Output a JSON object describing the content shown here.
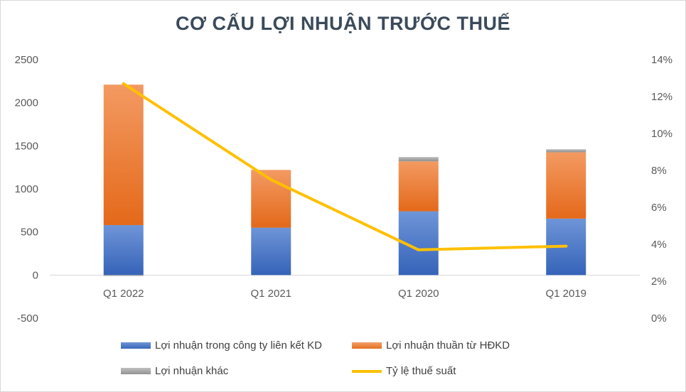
{
  "chart_data": {
    "type": "bar",
    "stacked": true,
    "title": "CƠ CẤU LỢI NHUẬN TRƯỚC THUẾ",
    "categories": [
      "Q1 2022",
      "Q1 2021",
      "Q1 2020",
      "Q1 2019"
    ],
    "series": [
      {
        "name": "Lợi nhuận trong công ty liên kết KD",
        "type": "bar",
        "axis": "left",
        "color": "#4472c4",
        "values": [
          580,
          550,
          740,
          655
        ]
      },
      {
        "name": "Lợi nhuận thuần từ HĐKD",
        "type": "bar",
        "axis": "left",
        "color": "#ed7d31",
        "values": [
          1630,
          670,
          580,
          770
        ]
      },
      {
        "name": "Lợi nhuận khác",
        "type": "bar",
        "axis": "left",
        "color": "#a5a5a5",
        "values": [
          -10,
          0,
          50,
          35
        ]
      },
      {
        "name": "Tỷ lệ thuế suất",
        "type": "line",
        "axis": "right",
        "color": "#ffc000",
        "values": [
          12.7,
          7.5,
          3.7,
          3.9
        ]
      }
    ],
    "y_left": {
      "ylim": [
        -500,
        2500
      ],
      "ticks": [
        2500,
        2000,
        1500,
        1000,
        500,
        0,
        -500
      ]
    },
    "y_right": {
      "ylim": [
        0,
        14
      ],
      "ticks": [
        "14%",
        "12%",
        "10%",
        "8%",
        "6%",
        "4%",
        "2%",
        "0%"
      ],
      "unit": "%"
    },
    "grid": false,
    "legend_position": "bottom"
  }
}
